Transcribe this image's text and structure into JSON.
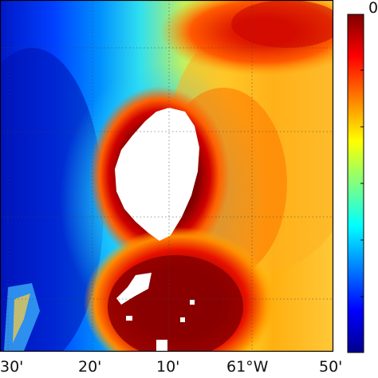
{
  "map": {
    "x_tick_labels": [
      "30'",
      "20'",
      "10'",
      "61°W",
      "50'"
    ],
    "colorbar_top_label": "0",
    "colormap": "jet",
    "land_color": "#ffffff",
    "grid": true,
    "grid_style": "dotted",
    "colorbar_ticks": 6
  },
  "colors": {
    "deep_blue": "#00008f",
    "blue": "#0000ff",
    "cyan": "#00ffff",
    "yellow": "#ffff00",
    "red": "#ff0000",
    "dark_red": "#800000"
  }
}
